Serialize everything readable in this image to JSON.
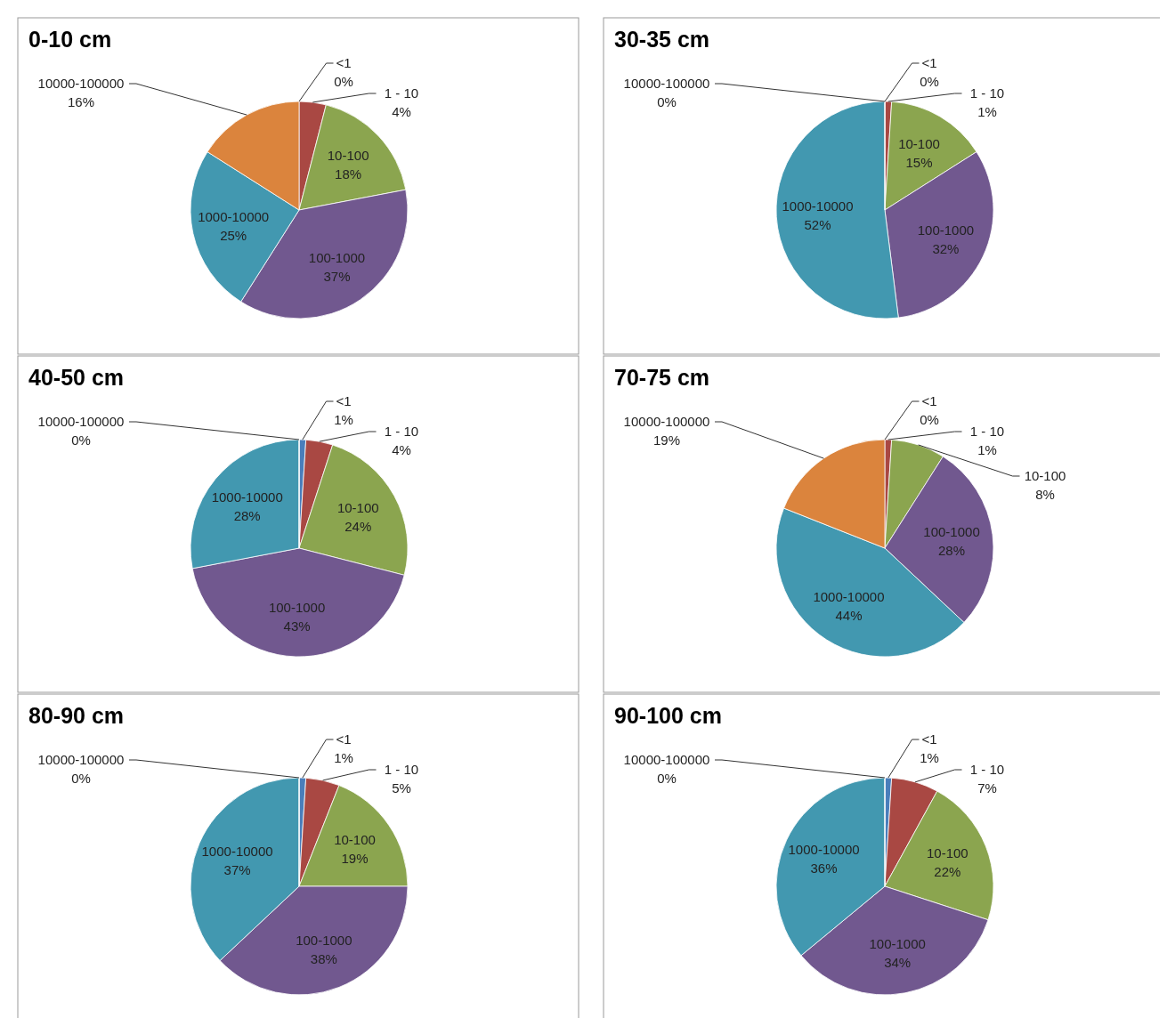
{
  "chart_data": [
    {
      "type": "pie",
      "title": "0-10 cm",
      "categories": [
        "<1",
        "1 - 10",
        "10-100",
        "100-1000",
        "1000-10000",
        "10000-100000"
      ],
      "values": [
        0,
        4,
        18,
        37,
        25,
        16
      ],
      "value_labels": [
        "0%",
        "4%",
        "18%",
        "37%",
        "25%",
        "16%"
      ],
      "colors": [
        "#4a7ebb",
        "#a94843",
        "#8ba54f",
        "#71588f",
        "#4298b0",
        "#db843d"
      ],
      "legend": false
    },
    {
      "type": "pie",
      "title": "30-35 cm",
      "categories": [
        "<1",
        "1 - 10",
        "10-100",
        "100-1000",
        "1000-10000",
        "10000-100000"
      ],
      "values": [
        0,
        1,
        15,
        32,
        52,
        0
      ],
      "value_labels": [
        "0%",
        "1%",
        "15%",
        "32%",
        "52%",
        "0%"
      ],
      "colors": [
        "#4a7ebb",
        "#a94843",
        "#8ba54f",
        "#71588f",
        "#4298b0",
        "#db843d"
      ],
      "legend": false
    },
    {
      "type": "pie",
      "title": "40-50 cm",
      "categories": [
        "<1",
        "1 - 10",
        "10-100",
        "100-1000",
        "1000-10000",
        "10000-100000"
      ],
      "values": [
        1,
        4,
        24,
        43,
        28,
        0
      ],
      "value_labels": [
        "1%",
        "4%",
        "24%",
        "43%",
        "28%",
        "0%"
      ],
      "colors": [
        "#4a7ebb",
        "#a94843",
        "#8ba54f",
        "#71588f",
        "#4298b0",
        "#db843d"
      ],
      "legend": false
    },
    {
      "type": "pie",
      "title": "70-75 cm",
      "categories": [
        "<1",
        "1 - 10",
        "10-100",
        "100-1000",
        "1000-10000",
        "10000-100000"
      ],
      "values": [
        0,
        1,
        8,
        28,
        44,
        19
      ],
      "value_labels": [
        "0%",
        "1%",
        "8%",
        "28%",
        "44%",
        "19%"
      ],
      "colors": [
        "#4a7ebb",
        "#a94843",
        "#8ba54f",
        "#71588f",
        "#4298b0",
        "#db843d"
      ],
      "legend": false
    },
    {
      "type": "pie",
      "title": "80-90 cm",
      "categories": [
        "<1",
        "1 - 10",
        "10-100",
        "100-1000",
        "1000-10000",
        "10000-100000"
      ],
      "values": [
        1,
        5,
        19,
        38,
        37,
        0
      ],
      "value_labels": [
        "1%",
        "5%",
        "19%",
        "38%",
        "37%",
        "0%"
      ],
      "colors": [
        "#4a7ebb",
        "#a94843",
        "#8ba54f",
        "#71588f",
        "#4298b0",
        "#db843d"
      ],
      "legend": false
    },
    {
      "type": "pie",
      "title": "90-100 cm",
      "categories": [
        "<1",
        "1 - 10",
        "10-100",
        "100-1000",
        "1000-10000",
        "10000-100000"
      ],
      "values": [
        1,
        7,
        22,
        34,
        36,
        0
      ],
      "value_labels": [
        "1%",
        "7%",
        "22%",
        "34%",
        "36%",
        "0%"
      ],
      "colors": [
        "#4a7ebb",
        "#a94843",
        "#8ba54f",
        "#71588f",
        "#4298b0",
        "#db843d"
      ],
      "legend": false
    }
  ]
}
